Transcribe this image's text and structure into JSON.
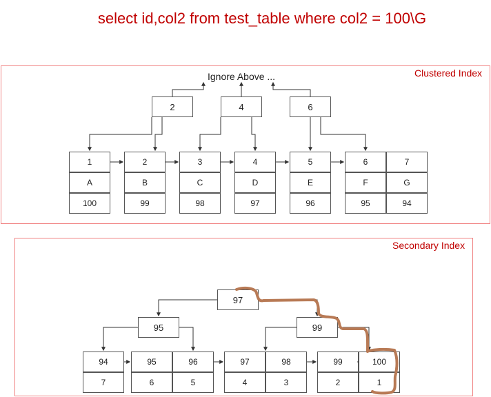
{
  "title": "select id,col2 from test_table where col2 = 100\\G",
  "clustered": {
    "label": "Clustered Index",
    "ignore_text": "Ignore Above ...",
    "internal_keys": [
      "2",
      "4",
      "6"
    ],
    "leaves": [
      {
        "id": "1",
        "name": "A",
        "col2": "100"
      },
      {
        "id": "2",
        "name": "B",
        "col2": "99"
      },
      {
        "id": "3",
        "name": "C",
        "col2": "98"
      },
      {
        "id": "4",
        "name": "D",
        "col2": "97"
      },
      {
        "id": "5",
        "name": "E",
        "col2": "96"
      },
      {
        "id": "6",
        "name": "F",
        "col2": "95"
      },
      {
        "id": "7",
        "name": "G",
        "col2": "94"
      }
    ]
  },
  "secondary": {
    "label": "Secondary Index",
    "root_key": "97",
    "internal_keys": [
      "95",
      "99"
    ],
    "leaves": [
      {
        "col2": "94",
        "id": "7"
      },
      {
        "col2": "95",
        "id": "6"
      },
      {
        "col2": "96",
        "id": "5"
      },
      {
        "col2": "97",
        "id": "4"
      },
      {
        "col2": "98",
        "id": "3"
      },
      {
        "col2": "99",
        "id": "2"
      },
      {
        "col2": "100",
        "id": "1"
      }
    ]
  },
  "colors": {
    "title": "#c00000",
    "panel_border": "#f08080",
    "highlight_path": "#b87a55"
  }
}
